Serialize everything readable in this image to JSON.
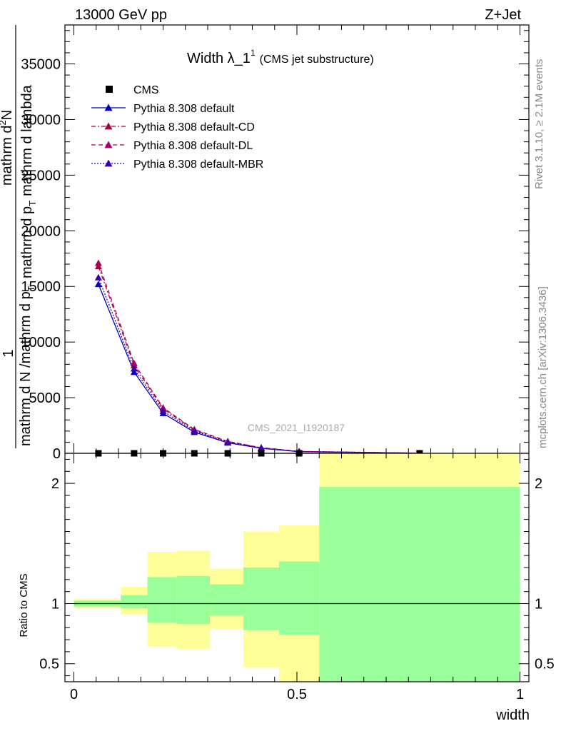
{
  "header": {
    "left": "13000 GeV pp",
    "right": "Z+Jet"
  },
  "side_labels": {
    "rivet": "Rivet 3.1.10, ≥ 2.1M events",
    "mcplots": "mcplots.cern.ch [arXiv:1306.3436]"
  },
  "watermark": "CMS_2021_I1920187",
  "colors": {
    "default": "#0000cc",
    "cd": "#aa0033",
    "dl": "#aa0066",
    "mbr": "#3300aa",
    "band_inner": "#99ff99",
    "band_outer": "#ffff99"
  },
  "chart_data": [
    {
      "type": "line",
      "title_main": "Width λ_1",
      "title_sup": "1",
      "title_sub": "(CMS jet substructure)",
      "ylabel_parts": {
        "one": "1",
        "denom": "mathrm d N /mathrm d p",
        "denom_sub": "T",
        "num": "mathrm d",
        "num_sup": "2",
        "num_rest": "N",
        "denom2": "mathrm d p",
        "denom2_sub": "T",
        "denom2_rest": "mathrm d lambda"
      },
      "xlim": [
        -0.02,
        1.02
      ],
      "ylim": [
        0,
        38500
      ],
      "yticks": [
        {
          "v": 0,
          "label": "0"
        },
        {
          "v": 5000,
          "label": "5000"
        },
        {
          "v": 10000,
          "label": "10000"
        },
        {
          "v": 15000,
          "label": "15000"
        },
        {
          "v": 20000,
          "label": "20000"
        },
        {
          "v": 25000,
          "label": "25000"
        },
        {
          "v": 30000,
          "label": "30000"
        },
        {
          "v": 35000,
          "label": "35000"
        }
      ],
      "x": [
        0.055,
        0.135,
        0.2,
        0.27,
        0.345,
        0.42,
        0.505,
        0.775
      ],
      "data": {
        "name": "CMS",
        "y": [
          0,
          0,
          0,
          0,
          0,
          0,
          0,
          0
        ]
      },
      "series": [
        {
          "name": "Pythia 8.308 default",
          "color_key": "default",
          "dash": "",
          "y": [
            15200,
            7300,
            3600,
            1900,
            950,
            450,
            150,
            10
          ]
        },
        {
          "name": "Pythia 8.308 default-CD",
          "color_key": "cd",
          "dash": "6,3,2,3",
          "y": [
            16800,
            7900,
            4000,
            2100,
            1050,
            500,
            170,
            12
          ]
        },
        {
          "name": "Pythia 8.308 default-DL",
          "color_key": "dl",
          "dash": "6,4",
          "y": [
            17100,
            8100,
            4100,
            2150,
            1080,
            510,
            175,
            12
          ]
        },
        {
          "name": "Pythia 8.308 default-MBR",
          "color_key": "mbr",
          "dash": "2,2",
          "y": [
            15800,
            7600,
            3800,
            2000,
            1000,
            470,
            160,
            11
          ]
        }
      ],
      "legend_position": "top-left"
    },
    {
      "type": "area",
      "ylabel": "Ratio to CMS",
      "xlabel": "width",
      "xlim": [
        -0.02,
        1.02
      ],
      "ylim": [
        0.35,
        2.25
      ],
      "yticks": [
        {
          "v": 0.5,
          "label": "0.5"
        },
        {
          "v": 1,
          "label": "1"
        },
        {
          "v": 2,
          "label": "2"
        }
      ],
      "xticks": [
        {
          "v": 0,
          "label": "0"
        },
        {
          "v": 0.5,
          "label": "0.5"
        },
        {
          "v": 1,
          "label": "1"
        }
      ],
      "bins": [
        {
          "x0": 0.0,
          "x1": 0.105,
          "inner_lo": 0.975,
          "inner_hi": 1.025,
          "outer_lo": 0.96,
          "outer_hi": 1.04
        },
        {
          "x0": 0.105,
          "x1": 0.165,
          "inner_lo": 0.96,
          "inner_hi": 1.07,
          "outer_lo": 0.91,
          "outer_hi": 1.14
        },
        {
          "x0": 0.165,
          "x1": 0.23,
          "inner_lo": 0.84,
          "inner_hi": 1.22,
          "outer_lo": 0.64,
          "outer_hi": 1.43
        },
        {
          "x0": 0.23,
          "x1": 0.305,
          "inner_lo": 0.83,
          "inner_hi": 1.23,
          "outer_lo": 0.62,
          "outer_hi": 1.44
        },
        {
          "x0": 0.305,
          "x1": 0.38,
          "inner_lo": 0.9,
          "inner_hi": 1.16,
          "outer_lo": 0.79,
          "outer_hi": 1.29
        },
        {
          "x0": 0.38,
          "x1": 0.46,
          "inner_lo": 0.78,
          "inner_hi": 1.3,
          "outer_lo": 0.47,
          "outer_hi": 1.6
        },
        {
          "x0": 0.46,
          "x1": 0.55,
          "inner_lo": 0.74,
          "inner_hi": 1.35,
          "outer_lo": 0.35,
          "outer_hi": 1.65
        },
        {
          "x0": 0.55,
          "x1": 1.0,
          "inner_lo": 0.35,
          "inner_hi": 1.97,
          "outer_lo": 0.35,
          "outer_hi": 2.25
        }
      ],
      "reference_line": 1
    }
  ]
}
